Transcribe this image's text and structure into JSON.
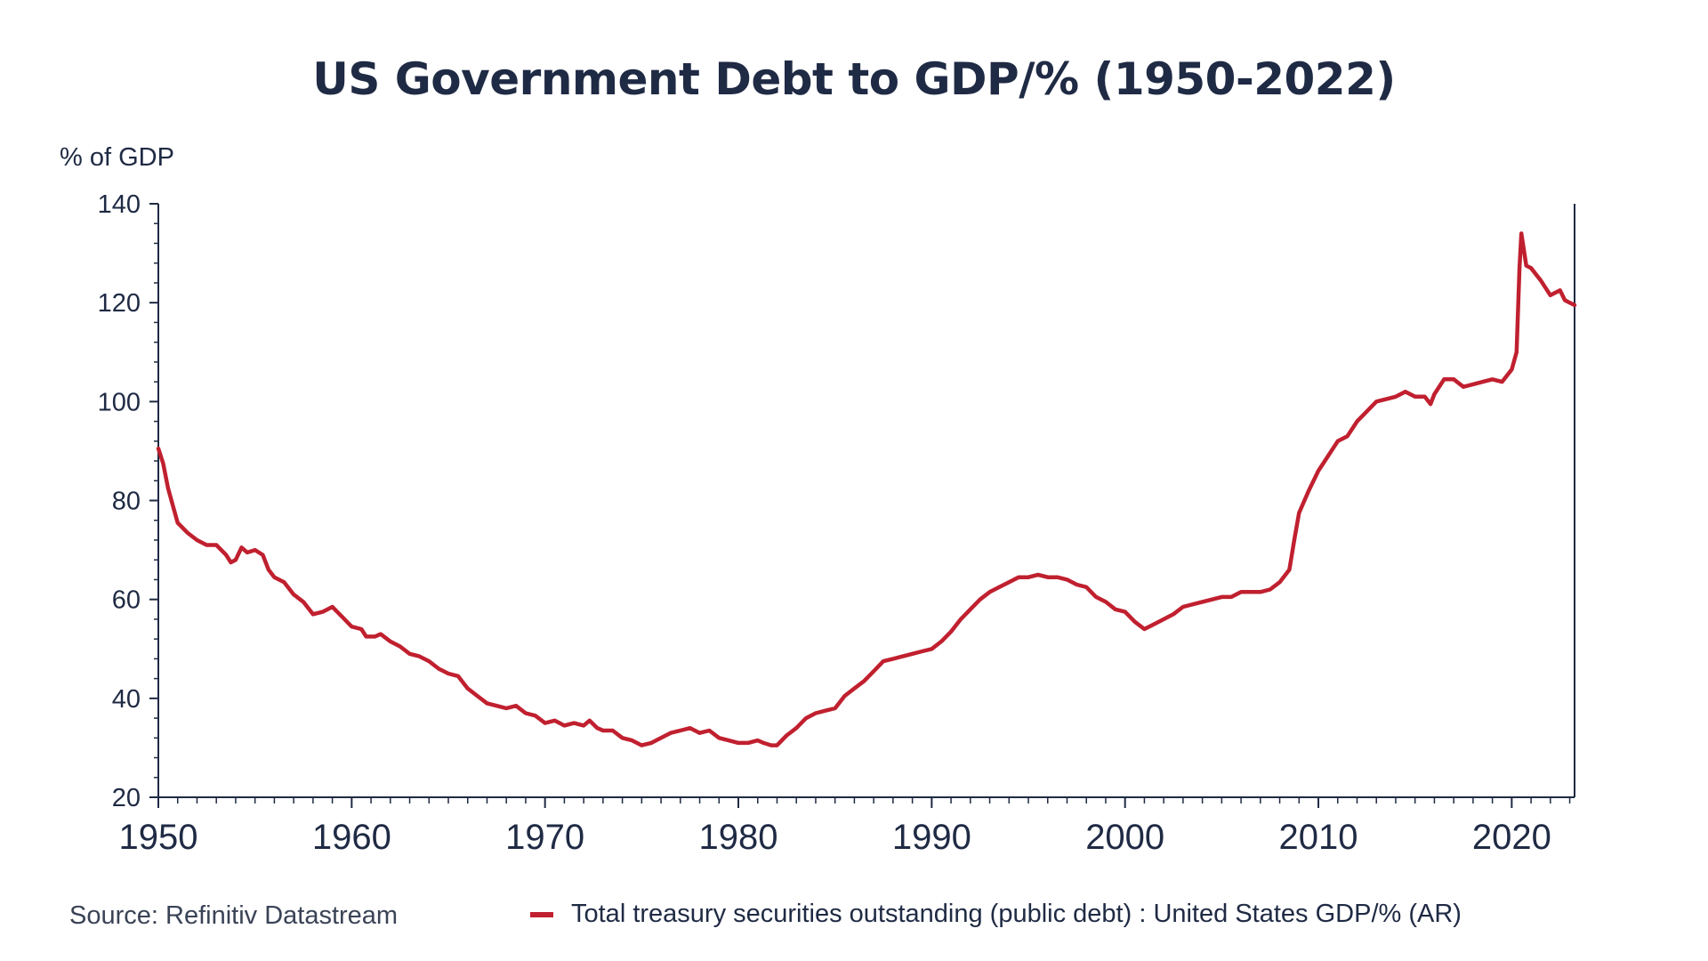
{
  "chart_data": {
    "type": "line",
    "title": "US Government Debt to GDP/% (1950-2022)",
    "ylabel": "% of GDP",
    "xlabel": "",
    "xlim": [
      1950,
      2023.25
    ],
    "ylim": [
      20,
      140
    ],
    "x_ticks": [
      1950,
      1960,
      1970,
      1980,
      1990,
      2000,
      2010,
      2020
    ],
    "y_ticks": [
      20,
      40,
      60,
      80,
      100,
      120,
      140
    ],
    "grid": false,
    "legend_position": "bottom",
    "source": "Source: Refinitiv Datastream",
    "series": [
      {
        "name": "Total treasury securities outstanding (public debt) : United States GDP/% (AR)",
        "color": "#c0202f",
        "points": [
          [
            1950.0,
            90.5
          ],
          [
            1950.25,
            87.5
          ],
          [
            1950.5,
            82.5
          ],
          [
            1950.75,
            79.0
          ],
          [
            1951.0,
            75.5
          ],
          [
            1951.5,
            73.5
          ],
          [
            1952.0,
            72.0
          ],
          [
            1952.5,
            71.0
          ],
          [
            1953.0,
            71.0
          ],
          [
            1953.5,
            69.0
          ],
          [
            1953.75,
            67.5
          ],
          [
            1954.0,
            68.0
          ],
          [
            1954.3,
            70.5
          ],
          [
            1954.6,
            69.5
          ],
          [
            1955.0,
            70.0
          ],
          [
            1955.4,
            69.0
          ],
          [
            1955.7,
            66.0
          ],
          [
            1956.0,
            64.5
          ],
          [
            1956.5,
            63.5
          ],
          [
            1957.0,
            61.0
          ],
          [
            1957.5,
            59.5
          ],
          [
            1958.0,
            57.0
          ],
          [
            1958.5,
            57.5
          ],
          [
            1959.0,
            58.5
          ],
          [
            1959.5,
            56.5
          ],
          [
            1960.0,
            54.5
          ],
          [
            1960.5,
            54.0
          ],
          [
            1960.75,
            52.5
          ],
          [
            1961.2,
            52.5
          ],
          [
            1961.5,
            53.0
          ],
          [
            1962.0,
            51.5
          ],
          [
            1962.5,
            50.5
          ],
          [
            1963.0,
            49.0
          ],
          [
            1963.5,
            48.5
          ],
          [
            1964.0,
            47.5
          ],
          [
            1964.5,
            46.0
          ],
          [
            1965.0,
            45.0
          ],
          [
            1965.5,
            44.5
          ],
          [
            1966.0,
            42.0
          ],
          [
            1966.5,
            40.5
          ],
          [
            1967.0,
            39.0
          ],
          [
            1967.5,
            38.5
          ],
          [
            1968.0,
            38.0
          ],
          [
            1968.5,
            38.5
          ],
          [
            1969.0,
            37.0
          ],
          [
            1969.5,
            36.5
          ],
          [
            1970.0,
            35.0
          ],
          [
            1970.5,
            35.5
          ],
          [
            1971.0,
            34.5
          ],
          [
            1971.5,
            35.0
          ],
          [
            1972.0,
            34.5
          ],
          [
            1972.3,
            35.5
          ],
          [
            1972.7,
            34.0
          ],
          [
            1973.0,
            33.5
          ],
          [
            1973.5,
            33.5
          ],
          [
            1974.0,
            32.0
          ],
          [
            1974.5,
            31.5
          ],
          [
            1975.0,
            30.5
          ],
          [
            1975.5,
            31.0
          ],
          [
            1976.0,
            32.0
          ],
          [
            1976.5,
            33.0
          ],
          [
            1977.0,
            33.5
          ],
          [
            1977.5,
            34.0
          ],
          [
            1978.0,
            33.0
          ],
          [
            1978.5,
            33.5
          ],
          [
            1979.0,
            32.0
          ],
          [
            1979.5,
            31.5
          ],
          [
            1980.0,
            31.0
          ],
          [
            1980.5,
            31.0
          ],
          [
            1981.0,
            31.5
          ],
          [
            1981.3,
            31.0
          ],
          [
            1981.7,
            30.5
          ],
          [
            1982.0,
            30.5
          ],
          [
            1982.5,
            32.5
          ],
          [
            1983.0,
            34.0
          ],
          [
            1983.5,
            36.0
          ],
          [
            1984.0,
            37.0
          ],
          [
            1984.5,
            37.5
          ],
          [
            1985.0,
            38.0
          ],
          [
            1985.5,
            40.5
          ],
          [
            1986.0,
            42.0
          ],
          [
            1986.5,
            43.5
          ],
          [
            1987.0,
            45.5
          ],
          [
            1987.5,
            47.5
          ],
          [
            1988.0,
            48.0
          ],
          [
            1988.5,
            48.5
          ],
          [
            1989.0,
            49.0
          ],
          [
            1989.5,
            49.5
          ],
          [
            1990.0,
            50.0
          ],
          [
            1990.5,
            51.5
          ],
          [
            1991.0,
            53.5
          ],
          [
            1991.5,
            56.0
          ],
          [
            1992.0,
            58.0
          ],
          [
            1992.5,
            60.0
          ],
          [
            1993.0,
            61.5
          ],
          [
            1993.5,
            62.5
          ],
          [
            1994.0,
            63.5
          ],
          [
            1994.5,
            64.5
          ],
          [
            1995.0,
            64.5
          ],
          [
            1995.5,
            65.0
          ],
          [
            1996.0,
            64.5
          ],
          [
            1996.5,
            64.5
          ],
          [
            1997.0,
            64.0
          ],
          [
            1997.5,
            63.0
          ],
          [
            1998.0,
            62.5
          ],
          [
            1998.5,
            60.5
          ],
          [
            1999.0,
            59.5
          ],
          [
            1999.5,
            58.0
          ],
          [
            2000.0,
            57.5
          ],
          [
            2000.5,
            55.5
          ],
          [
            2001.0,
            54.0
          ],
          [
            2001.5,
            55.0
          ],
          [
            2002.0,
            56.0
          ],
          [
            2002.5,
            57.0
          ],
          [
            2003.0,
            58.5
          ],
          [
            2003.5,
            59.0
          ],
          [
            2004.0,
            59.5
          ],
          [
            2004.5,
            60.0
          ],
          [
            2005.0,
            60.5
          ],
          [
            2005.5,
            60.5
          ],
          [
            2006.0,
            61.5
          ],
          [
            2006.5,
            61.5
          ],
          [
            2007.0,
            61.5
          ],
          [
            2007.5,
            62.0
          ],
          [
            2008.0,
            63.5
          ],
          [
            2008.5,
            66.0
          ],
          [
            2008.75,
            72.0
          ],
          [
            2009.0,
            77.5
          ],
          [
            2009.5,
            82.0
          ],
          [
            2010.0,
            86.0
          ],
          [
            2010.5,
            89.0
          ],
          [
            2011.0,
            92.0
          ],
          [
            2011.5,
            93.0
          ],
          [
            2012.0,
            96.0
          ],
          [
            2012.5,
            98.0
          ],
          [
            2013.0,
            100.0
          ],
          [
            2013.5,
            100.5
          ],
          [
            2014.0,
            101.0
          ],
          [
            2014.5,
            102.0
          ],
          [
            2015.0,
            101.0
          ],
          [
            2015.5,
            101.0
          ],
          [
            2015.8,
            99.5
          ],
          [
            2016.0,
            101.5
          ],
          [
            2016.5,
            104.5
          ],
          [
            2017.0,
            104.5
          ],
          [
            2017.5,
            103.0
          ],
          [
            2018.0,
            103.5
          ],
          [
            2018.5,
            104.0
          ],
          [
            2019.0,
            104.5
          ],
          [
            2019.5,
            104.0
          ],
          [
            2020.0,
            106.5
          ],
          [
            2020.25,
            110.0
          ],
          [
            2020.4,
            127.0
          ],
          [
            2020.5,
            134.0
          ],
          [
            2020.75,
            127.5
          ],
          [
            2021.0,
            127.0
          ],
          [
            2021.5,
            124.5
          ],
          [
            2022.0,
            121.5
          ],
          [
            2022.5,
            122.5
          ],
          [
            2022.75,
            120.5
          ],
          [
            2023.0,
            120.0
          ],
          [
            2023.25,
            119.5
          ]
        ]
      }
    ]
  }
}
